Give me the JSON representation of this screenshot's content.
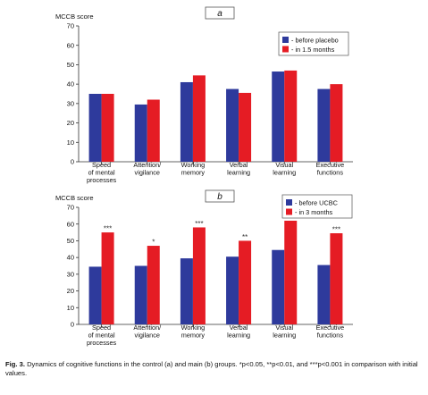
{
  "figure": {
    "caption": {
      "label": "Fig. 3.",
      "text": "Dynamics of cognitive functions in the control (a) and main (b) groups. *p<0.05, **p<0.01, and ***p<0.001 in comparison with initial values."
    }
  },
  "colors": {
    "blue": "#2e3a9c",
    "red": "#e51c24",
    "axis": "#333333"
  },
  "chart_data": [
    {
      "type": "bar",
      "panel_label": "a",
      "ylabel": "MCCB score",
      "ylim": [
        0,
        70
      ],
      "yticks": [
        0,
        10,
        20,
        30,
        40,
        50,
        60,
        70
      ],
      "legend_position": "top-right",
      "categories": [
        [
          "Speed",
          "of mental",
          "processes"
        ],
        [
          "Attention/",
          "vigilance"
        ],
        [
          "Working",
          "memory"
        ],
        [
          "Verbal",
          "learning"
        ],
        [
          "Visual",
          "learning"
        ],
        [
          "Executive",
          "functions"
        ]
      ],
      "series": [
        {
          "name": "- before placebo",
          "color": "#2e3a9c",
          "values": [
            35,
            29.5,
            41,
            37.5,
            46.5,
            37.5
          ]
        },
        {
          "name": "- in 1.5 months",
          "color": "#e51c24",
          "values": [
            35,
            32,
            44.5,
            35.5,
            47,
            40
          ]
        }
      ],
      "annotations": []
    },
    {
      "type": "bar",
      "panel_label": "b",
      "ylabel": "MCCB score",
      "ylim": [
        0,
        70
      ],
      "yticks": [
        0,
        10,
        20,
        30,
        40,
        50,
        60,
        70
      ],
      "legend_position": "top-right",
      "categories": [
        [
          "Speed",
          "of mental",
          "processes"
        ],
        [
          "Attention/",
          "vigilance"
        ],
        [
          "Working",
          "memory"
        ],
        [
          "Verbal",
          "learning"
        ],
        [
          "Visual",
          "learning"
        ],
        [
          "Executive",
          "functions"
        ]
      ],
      "series": [
        {
          "name": "- before UCBC",
          "color": "#2e3a9c",
          "values": [
            34.5,
            35,
            39.5,
            40.5,
            44.5,
            35.5
          ]
        },
        {
          "name": "- in 3 months",
          "color": "#e51c24",
          "values": [
            55,
            47,
            58,
            50,
            62,
            54.5
          ]
        }
      ],
      "annotations": [
        "***",
        "*",
        "***",
        "**",
        "***",
        "***"
      ]
    }
  ]
}
